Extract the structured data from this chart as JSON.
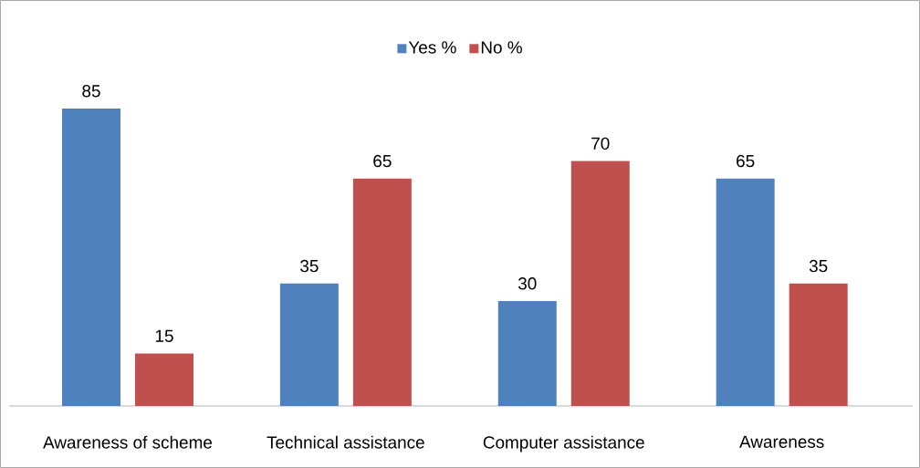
{
  "chart_data": {
    "type": "bar",
    "categories": [
      "Awareness of scheme",
      "Technical assistance",
      "Computer assistance",
      "Awareness"
    ],
    "series": [
      {
        "name": "Yes %",
        "color": "#4f81bd",
        "values": [
          85,
          35,
          30,
          65
        ]
      },
      {
        "name": "No %",
        "color": "#c0504d",
        "values": [
          15,
          65,
          70,
          35
        ]
      }
    ],
    "data_labels": true,
    "legend": "top"
  }
}
